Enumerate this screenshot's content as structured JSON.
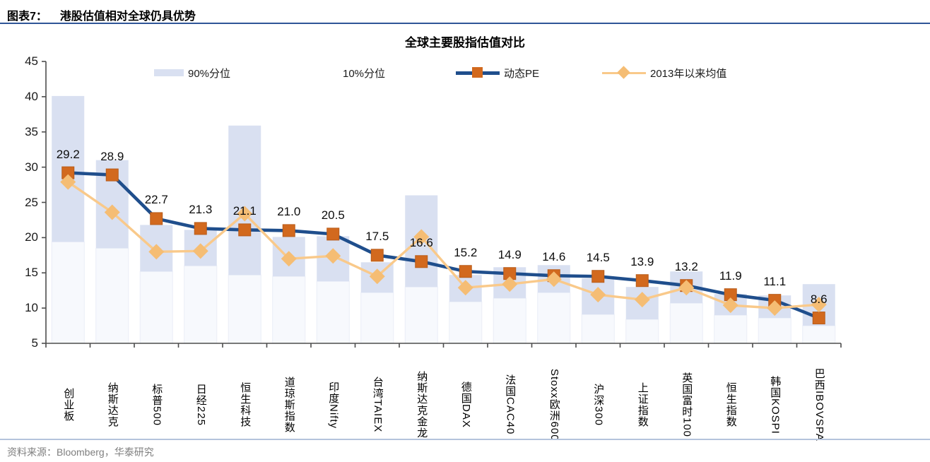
{
  "header": {
    "prefix": "图表7：",
    "title": "港股估值相对全球仍具优势"
  },
  "chart": {
    "title": "全球主要股指估值对比",
    "legend": {
      "p90": "90%分位",
      "p10": "10%分位",
      "pe": "动态PE",
      "mean": "2013年以来均值"
    }
  },
  "chart_data": {
    "type": "bar+line combo (percentile range bars with two marker lines)",
    "title": "全球主要股指估值对比",
    "ylim": [
      5,
      45
    ],
    "yticks": [
      5,
      10,
      15,
      20,
      25,
      30,
      35,
      40,
      45
    ],
    "grid": false,
    "legend_position": "top",
    "categories": [
      "创业板",
      "纳斯达克",
      "标普500",
      "日经225",
      "恒生科技",
      "道琼斯指数",
      "印度Nifty",
      "台湾TAIEX",
      "纳斯达克金龙",
      "德国DAX",
      "法国CAC40",
      "Stoxx欧洲600",
      "沪深300",
      "上证指数",
      "英国富时100",
      "恒生指数",
      "韩国KOSPI",
      "巴西IBOVSPA"
    ],
    "series": [
      {
        "name": "90%分位",
        "type": "range-bar-top",
        "values": [
          40.1,
          31.0,
          21.8,
          21.1,
          35.9,
          20.1,
          20.2,
          16.5,
          26.0,
          14.7,
          15.8,
          16.1,
          14.2,
          13.0,
          15.2,
          12.0,
          11.8,
          13.4
        ]
      },
      {
        "name": "10%分位",
        "type": "range-bar-bottom",
        "values": [
          19.4,
          18.5,
          15.2,
          16.0,
          14.7,
          14.5,
          13.8,
          12.2,
          13.0,
          10.9,
          11.4,
          12.2,
          9.1,
          8.4,
          10.7,
          9.0,
          8.6,
          7.5
        ]
      },
      {
        "name": "动态PE",
        "type": "line",
        "marker": "square",
        "data_labels": true,
        "values": [
          29.2,
          28.9,
          22.7,
          21.3,
          21.1,
          21.0,
          20.5,
          17.5,
          16.6,
          15.2,
          14.9,
          14.6,
          14.5,
          13.9,
          13.2,
          11.9,
          11.1,
          8.6
        ]
      },
      {
        "name": "2013年以来均值",
        "type": "line",
        "marker": "diamond",
        "data_labels": false,
        "values": [
          27.9,
          23.6,
          18.0,
          18.1,
          23.4,
          17.0,
          17.4,
          14.5,
          20.1,
          12.9,
          13.4,
          14.1,
          11.9,
          11.2,
          12.9,
          10.4,
          10.0,
          10.5
        ]
      }
    ],
    "colors": {
      "band_bar": "#d9e0f1",
      "band_bar_lower": "#f7f9fd",
      "band_bar_lower_edge": "#eaeef7",
      "pe_line": "#1f4e8c",
      "pe_marker": "#d2691e",
      "pe_marker_edge": "#b85c1a",
      "mean_line": "#f9c98a",
      "mean_marker": "#f5bd74",
      "axis": "#4d4d4d",
      "header_rule": "#2f5597",
      "footer_rule": "#b4c3dc",
      "footer_text": "#7f7f7f"
    }
  },
  "footer": {
    "source": "资料来源：Bloomberg，华泰研究"
  }
}
